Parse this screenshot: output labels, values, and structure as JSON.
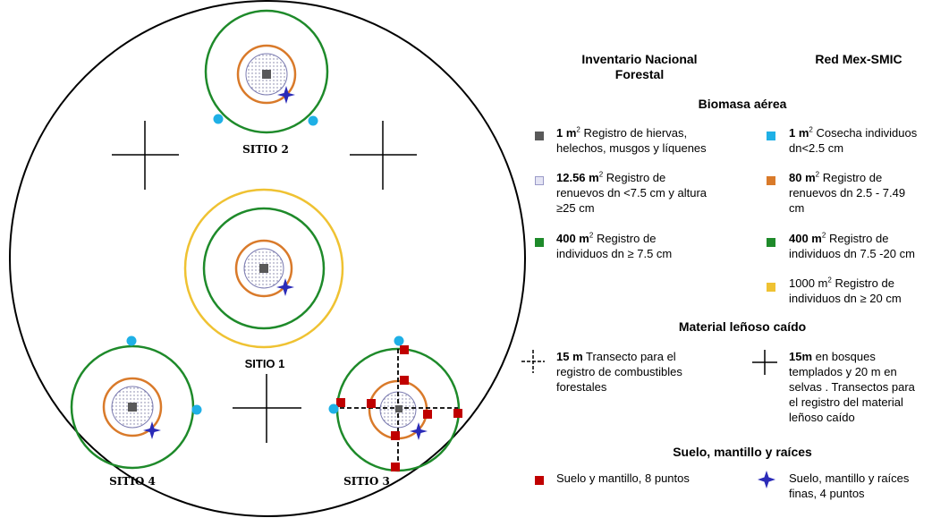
{
  "diagram": {
    "sitios": [
      "SITIO 1",
      "SITIO 2",
      "SITIO 3",
      "SITIO 4"
    ]
  },
  "legend": {
    "header_inf_line1": "Inventario Nacional",
    "header_inf_line2": "Forestal",
    "header_red": "Red Mex-SMIC",
    "section_biomasa": "Biomasa aérea",
    "section_material": "Material leñoso caído",
    "section_suelo": "Suelo, mantillo y raíces",
    "inf_items": [
      {
        "bold": "1 m",
        "sup": "2",
        "line1": "  Registro de hiervas,",
        "line2": "helechos, musgos y líquenes",
        "line3": ""
      },
      {
        "bold": "12.56 m",
        "sup": "2",
        "line1": " Registro de",
        "line2": "renuevos dn <7.5 cm y altura",
        "line3": "≥25 cm"
      },
      {
        "bold": "400 m",
        "sup": "2",
        "line1": "  Registro de",
        "line2": "individuos dn ≥ 7.5 cm",
        "line3": ""
      }
    ],
    "red_items": [
      {
        "bold": "1 m",
        "sup": "2",
        "line1": " Cosecha individuos",
        "line2": "dn<2.5 cm",
        "line3": ""
      },
      {
        "bold": "80 m",
        "sup": "2",
        "line1": " Registro de",
        "line2": "renuevos dn 2.5 - 7.49",
        "line3": "cm"
      },
      {
        "bold": "400 m",
        "sup": "2",
        "line1": " Registro de",
        "line2": "individuos dn 7.5 -20 cm",
        "line3": ""
      },
      {
        "bold": "",
        "sup": "",
        "pre": "1000 m",
        "presup": "2",
        "line1": " Registro de",
        "line2": "individuos dn ≥ 20 cm",
        "line3": ""
      }
    ],
    "transect_inf": {
      "bold": "15 m",
      "line1": " Transecto para el",
      "line2": "registro de combustibles",
      "line3": "forestales"
    },
    "transect_red": {
      "bold": "15m",
      "line1": " en bosques",
      "line2": "templados y 20 m en",
      "line3": "selvas . Transectos para",
      "line4": "el registro del material",
      "line5": "leñoso caído"
    },
    "suelo_inf": "Suelo y mantillo, 8 puntos",
    "suelo_red_line1": "Suelo, mantillo y raíces",
    "suelo_red_line2": "finas, 4 puntos",
    "colors": {
      "gray": "#595959",
      "dotted": "#d9d9f0",
      "green": "#1e8a2a",
      "cyan": "#1fb0e6",
      "orange": "#d97a2a",
      "yellow": "#efc232",
      "red": "#c00000",
      "blue_star": "#2b2bb8"
    }
  }
}
